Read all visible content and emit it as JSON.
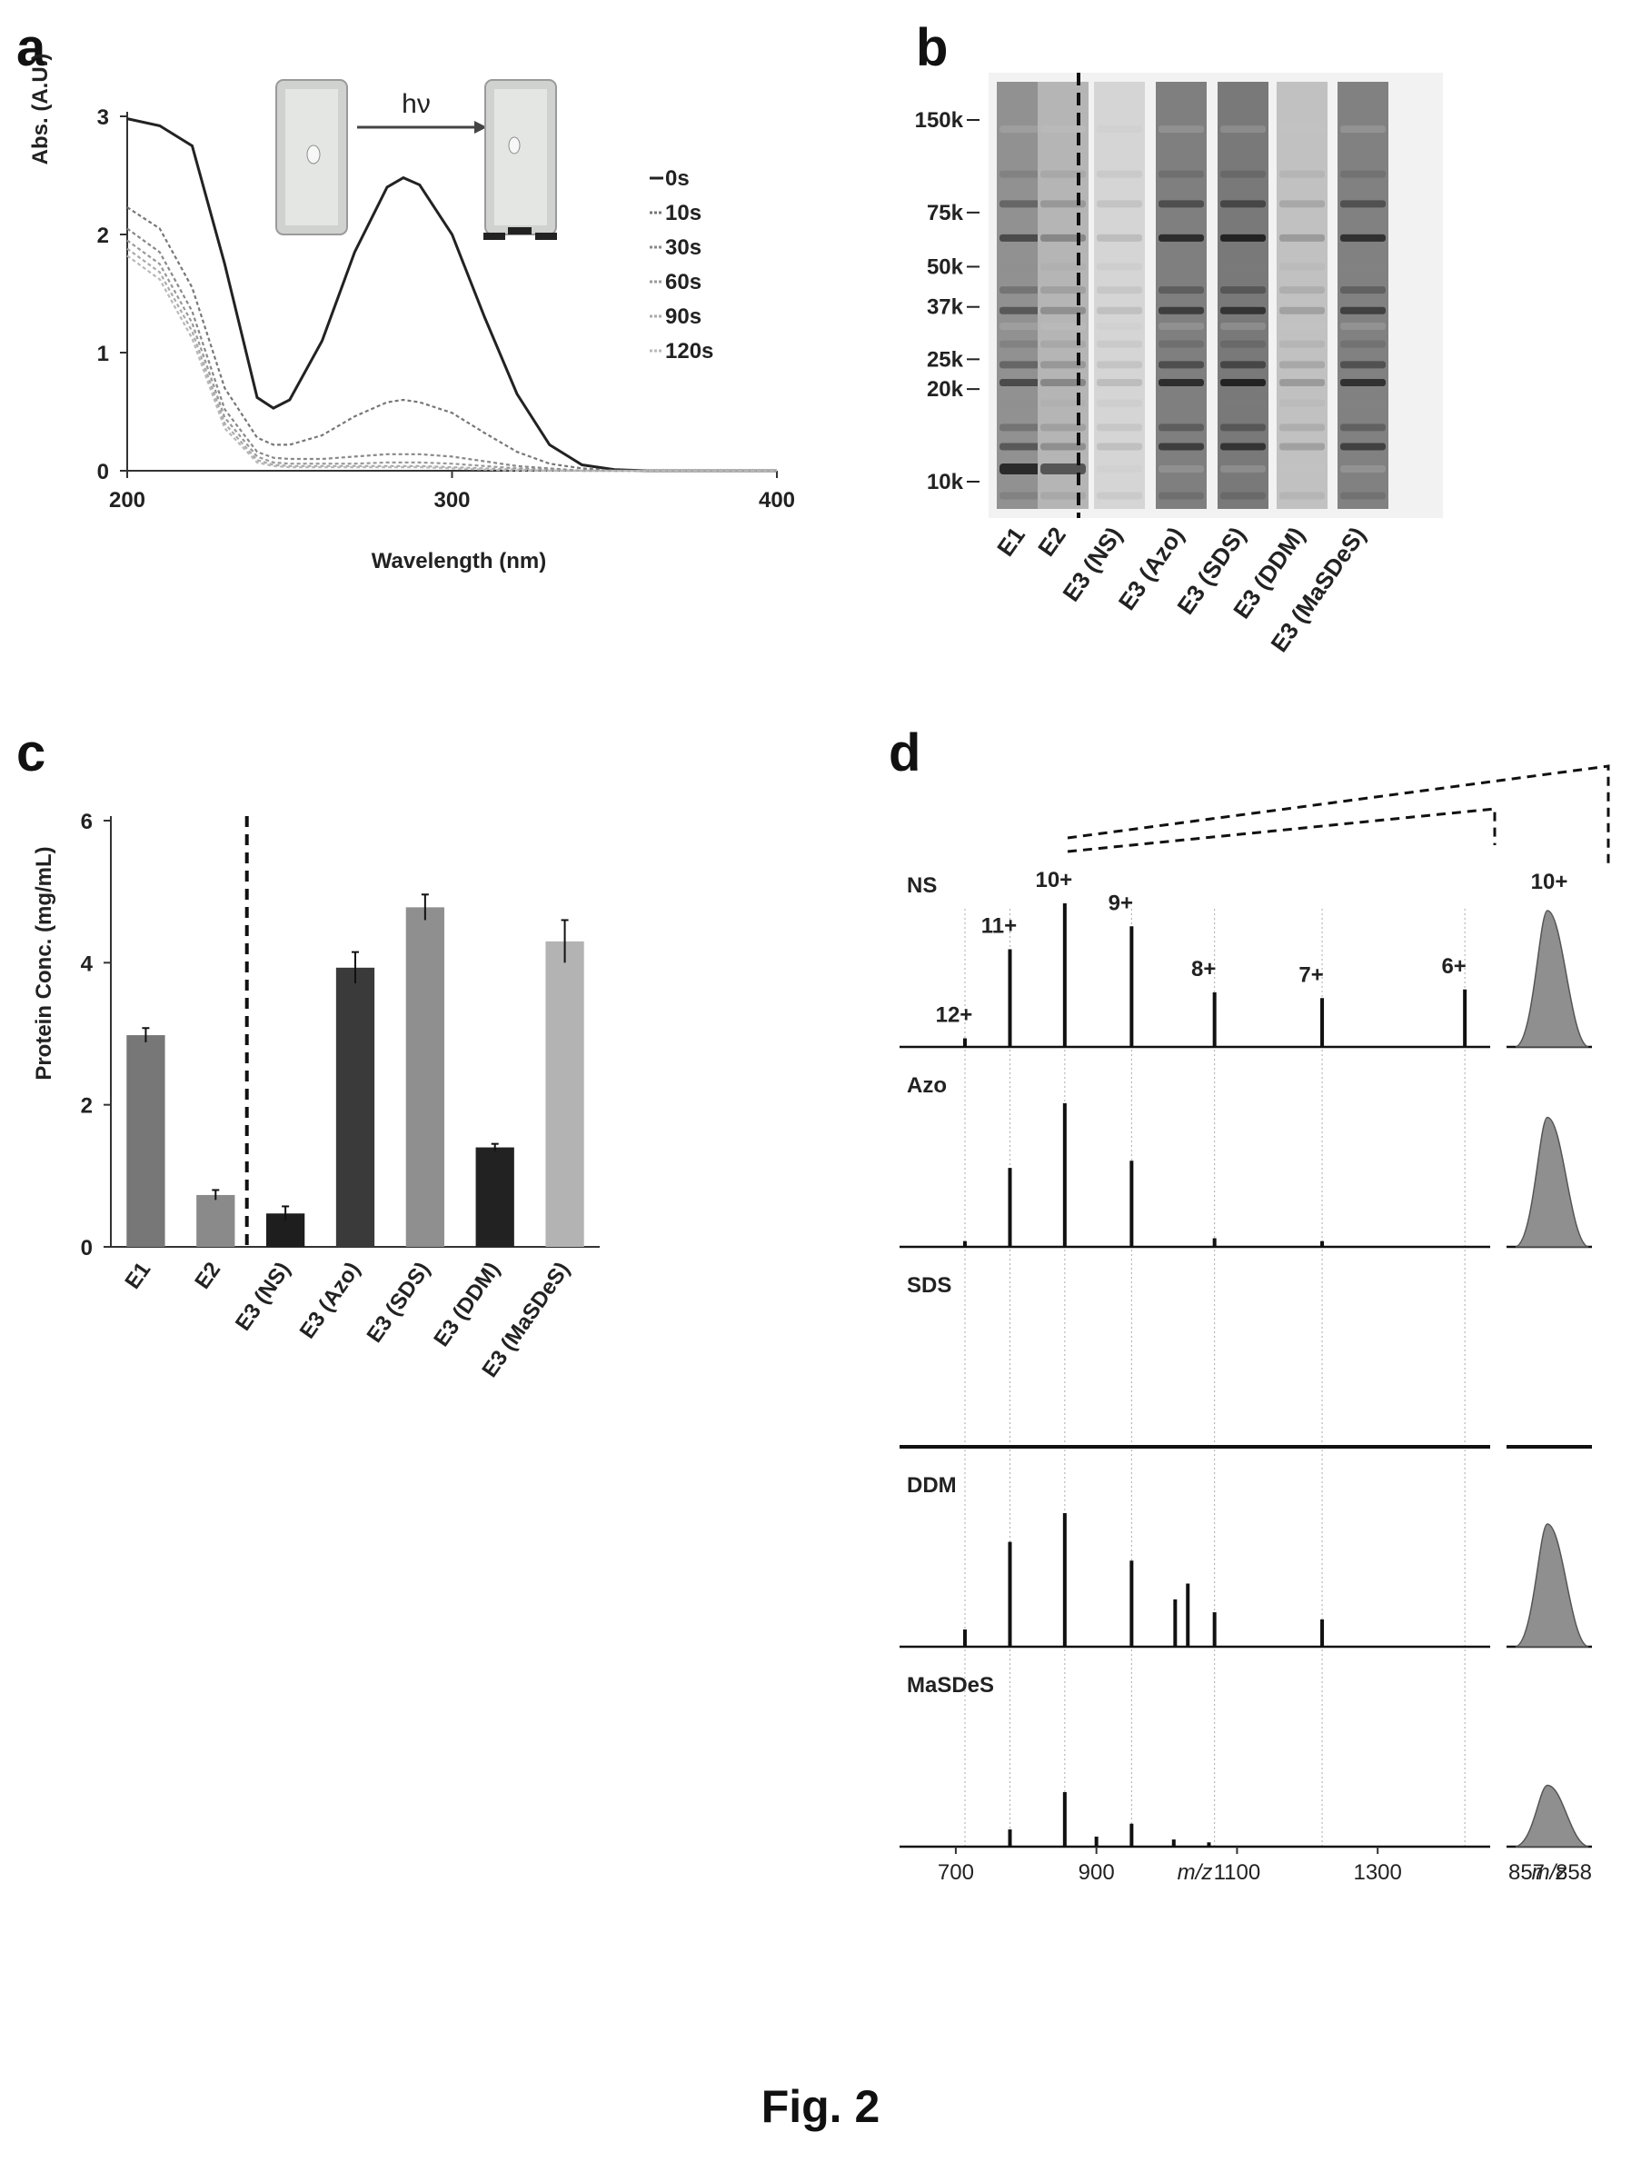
{
  "figure": {
    "caption": "Fig. 2"
  },
  "chart_data": [
    {
      "panel": "a",
      "type": "line",
      "xlabel": "Wavelength (nm)",
      "ylabel": "Abs. (A.U.)",
      "xlim": [
        200,
        400
      ],
      "ylim": [
        0,
        3
      ],
      "xticks": [
        "200",
        "300",
        "400"
      ],
      "yticks": [
        "0",
        "1",
        "2",
        "3"
      ],
      "legend_position": "right",
      "inset_label": "hν",
      "x": [
        200,
        210,
        220,
        230,
        240,
        245,
        250,
        260,
        270,
        280,
        285,
        290,
        300,
        310,
        320,
        330,
        340,
        350,
        360,
        380,
        400
      ],
      "series": [
        {
          "name": "0s",
          "color": "#222222",
          "values": [
            2.98,
            2.92,
            2.75,
            1.75,
            0.62,
            0.53,
            0.6,
            1.1,
            1.85,
            2.4,
            2.48,
            2.42,
            2.0,
            1.3,
            0.65,
            0.22,
            0.05,
            0.01,
            0.0,
            0.0,
            0.0
          ]
        },
        {
          "name": "10s",
          "color": "#777777",
          "values": [
            2.23,
            2.05,
            1.55,
            0.7,
            0.28,
            0.22,
            0.22,
            0.3,
            0.46,
            0.58,
            0.6,
            0.58,
            0.49,
            0.32,
            0.16,
            0.06,
            0.02,
            0.0,
            0.0,
            0.0,
            0.0
          ]
        },
        {
          "name": "30s",
          "color": "#888888",
          "values": [
            2.05,
            1.85,
            1.35,
            0.52,
            0.16,
            0.11,
            0.1,
            0.1,
            0.12,
            0.14,
            0.14,
            0.14,
            0.12,
            0.08,
            0.04,
            0.02,
            0.0,
            0.0,
            0.0,
            0.0,
            0.0
          ]
        },
        {
          "name": "60s",
          "color": "#999999",
          "values": [
            1.95,
            1.75,
            1.25,
            0.45,
            0.12,
            0.07,
            0.06,
            0.06,
            0.06,
            0.07,
            0.07,
            0.07,
            0.06,
            0.04,
            0.02,
            0.01,
            0.0,
            0.0,
            0.0,
            0.0,
            0.0
          ]
        },
        {
          "name": "90s",
          "color": "#aaaaaa",
          "values": [
            1.88,
            1.68,
            1.18,
            0.4,
            0.09,
            0.05,
            0.04,
            0.04,
            0.04,
            0.04,
            0.04,
            0.04,
            0.03,
            0.02,
            0.01,
            0.0,
            0.0,
            0.0,
            0.0,
            0.0,
            0.0
          ]
        },
        {
          "name": "120s",
          "color": "#b8b8b8",
          "values": [
            1.82,
            1.62,
            1.12,
            0.36,
            0.07,
            0.04,
            0.03,
            0.03,
            0.03,
            0.03,
            0.03,
            0.03,
            0.02,
            0.01,
            0.0,
            0.0,
            0.0,
            0.0,
            0.0,
            0.0,
            0.0
          ]
        }
      ]
    },
    {
      "panel": "b",
      "type": "gel",
      "mw_markers": [
        {
          "label": "150k",
          "kda": 150
        },
        {
          "label": "75k",
          "kda": 75
        },
        {
          "label": "50k",
          "kda": 50
        },
        {
          "label": "37k",
          "kda": 37
        },
        {
          "label": "25k",
          "kda": 25
        },
        {
          "label": "20k",
          "kda": 20
        },
        {
          "label": "10k",
          "kda": 10
        }
      ],
      "lanes": [
        {
          "label": "E1",
          "intensity": 0.75
        },
        {
          "label": "E2",
          "intensity": 0.45
        },
        {
          "label": "E3 (NS)",
          "intensity": 0.18
        },
        {
          "label": "E3 (Azo)",
          "intensity": 0.9
        },
        {
          "label": "E3 (SDS)",
          "intensity": 0.95
        },
        {
          "label": "E3 (DDM)",
          "intensity": 0.35
        },
        {
          "label": "E3 (MaSDeS)",
          "intensity": 0.88
        }
      ]
    },
    {
      "panel": "c",
      "type": "bar",
      "ylabel": "Protein Conc. (mg/mL)",
      "ylim": [
        0,
        6
      ],
      "yticks": [
        "0",
        "2",
        "4",
        "6"
      ],
      "categories": [
        "E1",
        "E2",
        "E3 (NS)",
        "E3 (Azo)",
        "E3 (SDS)",
        "E3 (DDM)",
        "E3 (MaSDeS)"
      ],
      "values": [
        2.98,
        0.73,
        0.47,
        3.93,
        4.78,
        1.4,
        4.3
      ],
      "errors": [
        0.1,
        0.07,
        0.1,
        0.22,
        0.18,
        0.05,
        0.3
      ],
      "colors": [
        "#777777",
        "#8a8a8a",
        "#1e1e1e",
        "#3a3a3a",
        "#8f8f8f",
        "#222222",
        "#b3b3b3"
      ]
    },
    {
      "panel": "d",
      "type": "spectrum",
      "xlabel": "m/z",
      "xlim": [
        620,
        1460
      ],
      "xticks": [
        "700",
        "900",
        "1100",
        "1300"
      ],
      "inset_xticks": [
        "857",
        "858"
      ],
      "inset_xlabel": "m/z",
      "inset_title": "10+",
      "charge_states": [
        {
          "label": "12+",
          "mz": 713
        },
        {
          "label": "11+",
          "mz": 777
        },
        {
          "label": "10+",
          "mz": 855
        },
        {
          "label": "9+",
          "mz": 950
        },
        {
          "label": "8+",
          "mz": 1068
        },
        {
          "label": "7+",
          "mz": 1221
        },
        {
          "label": "6+",
          "mz": 1424
        }
      ],
      "traces": [
        {
          "name": "NS",
          "peaks": [
            [
              713,
              0.06
            ],
            [
              777,
              0.68
            ],
            [
              855,
              1.0
            ],
            [
              950,
              0.84
            ],
            [
              1068,
              0.38
            ],
            [
              1221,
              0.34
            ],
            [
              1424,
              0.4
            ]
          ],
          "inset": 1.0
        },
        {
          "name": "Azo",
          "peaks": [
            [
              713,
              0.04
            ],
            [
              777,
              0.55
            ],
            [
              855,
              1.0
            ],
            [
              950,
              0.6
            ],
            [
              1068,
              0.06
            ],
            [
              1221,
              0.04
            ]
          ],
          "inset": 0.95
        },
        {
          "name": "SDS",
          "peaks": [],
          "inset": 0.0
        },
        {
          "name": "DDM",
          "peaks": [
            [
              713,
              0.12
            ],
            [
              777,
              0.73
            ],
            [
              855,
              0.93
            ],
            [
              950,
              0.6
            ],
            [
              1012,
              0.33
            ],
            [
              1030,
              0.44
            ],
            [
              1068,
              0.24
            ],
            [
              1221,
              0.19
            ]
          ],
          "inset": 0.9
        },
        {
          "name": "MaSDeS",
          "peaks": [
            [
              777,
              0.12
            ],
            [
              855,
              0.38
            ],
            [
              900,
              0.07
            ],
            [
              950,
              0.16
            ],
            [
              1010,
              0.05
            ],
            [
              1060,
              0.03
            ]
          ],
          "inset": 0.45
        }
      ]
    }
  ]
}
